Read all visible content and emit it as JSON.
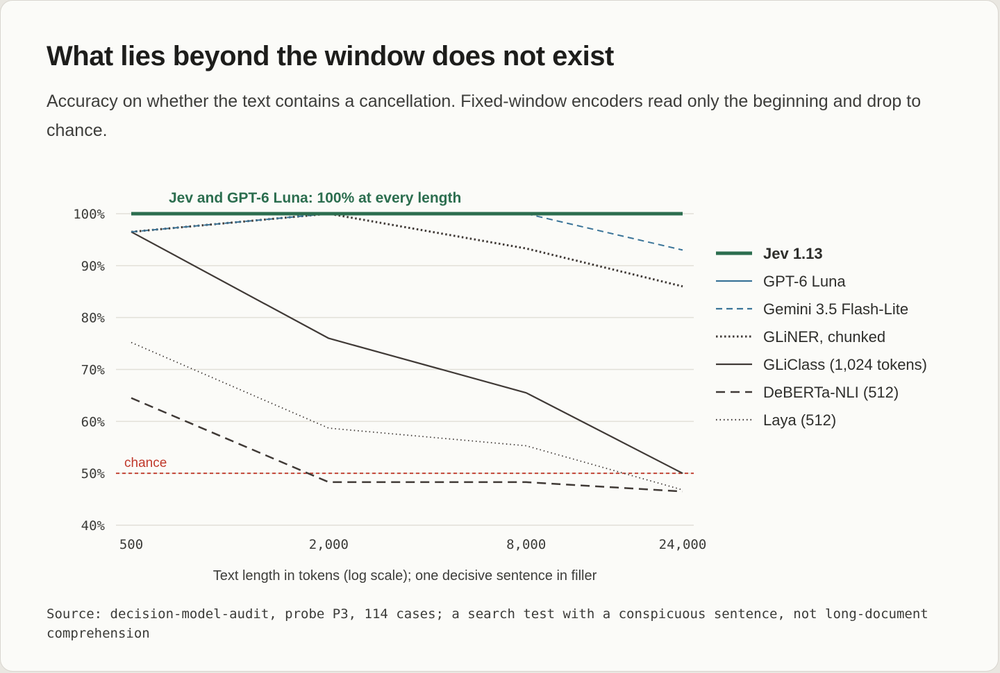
{
  "header": {
    "title": "What lies beyond the window does not exist",
    "subtitle": "Accuracy on whether the text contains a cancellation. Fixed-window encoders read only the beginning and drop to chance."
  },
  "footer": {
    "source": "Source: decision-model-audit, probe P3, 114 cases; a search test with a conspicuous sentence, not long-document comprehension"
  },
  "chart_data": {
    "type": "line",
    "xlabel": "Text length in tokens (log scale); one decisive sentence in filler",
    "ylabel": "",
    "x_scale": "log",
    "x": [
      500,
      2000,
      8000,
      24000
    ],
    "x_tick_labels": [
      "500",
      "2,000",
      "8,000",
      "24,000"
    ],
    "ylim": [
      40,
      100
    ],
    "y_ticks": [
      40,
      50,
      60,
      70,
      80,
      90,
      100
    ],
    "y_tick_labels": [
      "40%",
      "50%",
      "60%",
      "70%",
      "80%",
      "90%",
      "100%"
    ],
    "grid": "horizontal",
    "legend_position": "right",
    "annotations": {
      "top_label": "Jev and GPT-6 Luna: 100% at every length",
      "chance_label": "chance",
      "chance_value": 50
    },
    "colors": {
      "jev": "#2c6e4f",
      "gpt": "#3a7498",
      "chance": "#c0392b",
      "dark": "#403a36",
      "grid": "#e2e0d8"
    },
    "series": [
      {
        "name": "Jev 1.13",
        "values": [
          100,
          100,
          100,
          100
        ],
        "color": "#2c6e4f",
        "style": "thick"
      },
      {
        "name": "GPT-6 Luna",
        "values": [
          100,
          100,
          100,
          100
        ],
        "color": "#3a7498",
        "style": "solid"
      },
      {
        "name": "Gemini 3.5 Flash-Lite",
        "values": [
          96.5,
          100,
          100,
          93
        ],
        "color": "#3a7498",
        "style": "dashed"
      },
      {
        "name": "GLiNER, chunked",
        "values": [
          96.5,
          100,
          93.3,
          86
        ],
        "color": "#403a36",
        "style": "dotted"
      },
      {
        "name": "GLiClass (1,024 tokens)",
        "values": [
          96.5,
          76,
          65.5,
          50
        ],
        "color": "#403a36",
        "style": "solid"
      },
      {
        "name": "DeBERTa-NLI (512)",
        "values": [
          64.5,
          48.3,
          48.3,
          46.5
        ],
        "color": "#403a36",
        "style": "longdash"
      },
      {
        "name": "Laya (512)",
        "values": [
          75.2,
          58.7,
          55.3,
          46.8
        ],
        "color": "#403a36",
        "style": "finedot"
      }
    ]
  }
}
